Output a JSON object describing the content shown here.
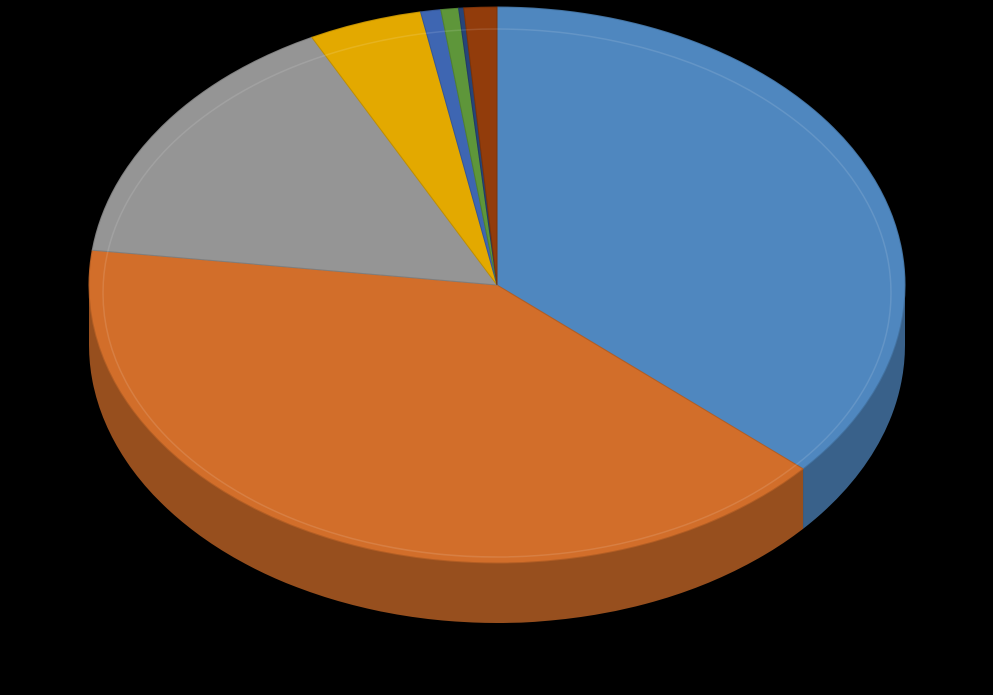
{
  "chart_data": {
    "type": "pie",
    "style": "3d",
    "background": "#000000",
    "title": "",
    "legend": "none",
    "data_labels": "none",
    "slices": [
      {
        "value": 36.5,
        "color": "#4F87BF"
      },
      {
        "value": 40.5,
        "color": "#D26E2A"
      },
      {
        "value": 15.5,
        "color": "#959595"
      },
      {
        "value": 4.5,
        "color": "#E3A900"
      },
      {
        "value": 0.8,
        "color": "#3E66B2"
      },
      {
        "value": 0.7,
        "color": "#5E963A"
      },
      {
        "value": 0.2,
        "color": "#264478"
      },
      {
        "value": 1.3,
        "color": "#923C0B"
      }
    ]
  }
}
